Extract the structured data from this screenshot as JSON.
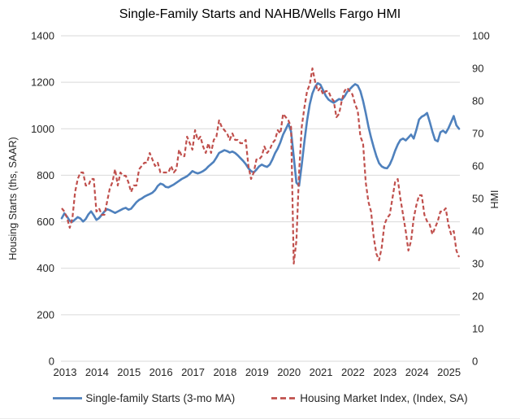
{
  "title": "Single-Family Starts and NAHB/Wells Fargo HMI",
  "colors": {
    "starts_line": "#4F81BD",
    "hmi_line": "#C0504D",
    "gridline": "#D9D9D9",
    "text": "#262626"
  },
  "legend": {
    "items": [
      {
        "label": "Single-family Starts (3-mo MA)",
        "style": "solid"
      },
      {
        "label": "Housing Market Index, (Index, SA)",
        "style": "dashed"
      }
    ]
  },
  "chart_data": {
    "type": "line",
    "title": "Single-Family Starts and NAHB/Wells Fargo HMI",
    "grid": "horizontal",
    "legend_position": "bottom",
    "x_axis": {
      "tick_labels": [
        "2013",
        "2014",
        "2015",
        "2016",
        "2017",
        "2018",
        "2019",
        "2020",
        "2021",
        "2022",
        "2023",
        "2024",
        "2025"
      ],
      "start": "2013-01",
      "end": "2025-06",
      "frequency": "monthly"
    },
    "left_axis": {
      "label": "Housing Starts (ths, SAAR)",
      "min": 0,
      "max": 1400,
      "step": 200,
      "tick_labels": [
        "0",
        "200",
        "400",
        "600",
        "800",
        "1000",
        "1200",
        "1400"
      ]
    },
    "right_axis": {
      "label": "HMI",
      "min": 0,
      "max": 100,
      "step": 10,
      "tick_labels": [
        "0",
        "10",
        "20",
        "30",
        "40",
        "50",
        "60",
        "70",
        "80",
        "90",
        "100"
      ]
    },
    "series": [
      {
        "name": "Single-family Starts (3-mo MA)",
        "axis": "left",
        "color": "#4F81BD",
        "style": "solid",
        "start": "2013-01",
        "frequency": "monthly",
        "values": [
          615,
          636,
          622,
          604,
          600,
          610,
          620,
          614,
          601,
          612,
          632,
          645,
          628,
          608,
          616,
          630,
          644,
          654,
          650,
          644,
          638,
          644,
          650,
          656,
          660,
          652,
          656,
          670,
          684,
          694,
          700,
          708,
          714,
          719,
          725,
          736,
          754,
          764,
          760,
          750,
          748,
          754,
          760,
          768,
          776,
          784,
          790,
          796,
          806,
          818,
          812,
          808,
          812,
          818,
          826,
          838,
          848,
          858,
          876,
          896,
          902,
          908,
          904,
          898,
          902,
          896,
          886,
          874,
          862,
          848,
          830,
          818,
          812,
          824,
          838,
          846,
          840,
          836,
          846,
          868,
          895,
          915,
          942,
          975,
          998,
          1022,
          988,
          880,
          768,
          755,
          845,
          945,
          1035,
          1105,
          1152,
          1180,
          1196,
          1190,
          1166,
          1142,
          1126,
          1118,
          1112,
          1120,
          1128,
          1124,
          1138,
          1158,
          1170,
          1182,
          1192,
          1186,
          1162,
          1120,
          1068,
          1010,
          962,
          920,
          882,
          852,
          838,
          832,
          830,
          846,
          872,
          905,
          932,
          952,
          958,
          950,
          962,
          975,
          958,
          996,
          1040,
          1052,
          1058,
          1068,
          1030,
          988,
          952,
          946,
          985,
          992,
          982,
          1002,
          1028,
          1055,
          1015,
          1000
        ]
      },
      {
        "name": "Housing Market Index, (Index, SA)",
        "axis": "right",
        "color": "#C0504D",
        "style": "dashed",
        "start": "2013-01",
        "frequency": "monthly",
        "values": [
          47,
          46,
          44,
          41,
          44,
          52,
          56,
          58,
          58,
          54,
          54,
          56,
          56,
          46,
          47,
          45,
          45,
          49,
          53,
          55,
          59,
          54,
          58,
          57,
          57,
          55,
          52,
          54,
          54,
          59,
          60,
          61,
          61,
          64,
          62,
          60,
          61,
          58,
          58,
          58,
          58,
          60,
          58,
          59,
          65,
          63,
          63,
          69,
          67,
          65,
          71,
          68,
          69,
          66,
          64,
          67,
          64,
          68,
          69,
          74,
          72,
          71,
          70,
          68,
          70,
          68,
          68,
          67,
          67,
          68,
          60,
          56,
          58,
          62,
          62,
          63,
          66,
          64,
          65,
          67,
          68,
          71,
          70,
          76,
          75,
          74,
          72,
          30,
          37,
          58,
          72,
          78,
          83,
          85,
          90,
          86,
          83,
          84,
          82,
          83,
          83,
          81,
          80,
          75,
          76,
          80,
          83,
          84,
          83,
          82,
          79,
          77,
          69,
          67,
          55,
          49,
          46,
          38,
          33,
          31,
          35,
          42,
          44,
          45,
          50,
          55,
          56,
          50,
          45,
          40,
          34,
          37,
          44,
          48,
          51,
          51,
          45,
          43,
          42,
          39,
          41,
          43,
          46,
          46,
          47,
          42,
          39,
          40,
          34,
          32
        ]
      }
    ]
  }
}
